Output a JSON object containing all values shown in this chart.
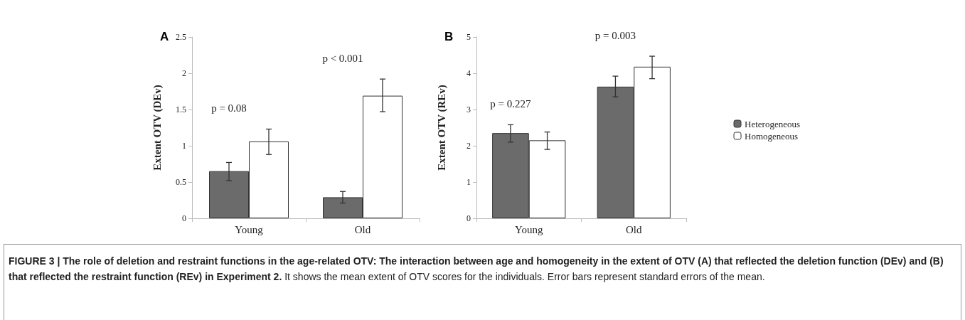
{
  "chart_data": [
    {
      "type": "bar",
      "title": "A",
      "categories": [
        "Young",
        "Old"
      ],
      "ylabel": "Extent OTV (DEv)",
      "ylim": [
        0,
        2.5
      ],
      "yticks": [
        0,
        0.5,
        1,
        1.5,
        2,
        2.5
      ],
      "grid": false,
      "legend": false,
      "series": [
        {
          "color": "#6b6b6b",
          "values": [
            0.65,
            0.29
          ],
          "errors": [
            [
              0.52,
              0.77
            ],
            [
              0.21,
              0.37
            ]
          ]
        },
        {
          "color": "#ffffff",
          "values": [
            1.06,
            1.69
          ],
          "errors": [
            [
              0.88,
              1.23
            ],
            [
              1.47,
              1.92
            ]
          ]
        }
      ],
      "annotations": [
        "p = 0.08",
        "p < 0.001"
      ]
    },
    {
      "type": "bar",
      "title": "B",
      "categories": [
        "Young",
        "Old"
      ],
      "ylabel": "Extent OTV (REv)",
      "ylim": [
        0,
        5
      ],
      "yticks": [
        0,
        1,
        2,
        3,
        4,
        5
      ],
      "grid": false,
      "legend": "right",
      "series": [
        {
          "name": "Heterogeneous",
          "color": "#6b6b6b",
          "values": [
            2.35,
            3.63
          ],
          "errors": [
            [
              2.1,
              2.58
            ],
            [
              3.35,
              3.92
            ]
          ]
        },
        {
          "name": "Homogeneous",
          "color": "#ffffff",
          "values": [
            2.15,
            4.18
          ],
          "errors": [
            [
              1.9,
              2.38
            ],
            [
              3.85,
              4.47
            ]
          ]
        }
      ],
      "annotations": [
        "FIGURE 3 | The role of deletion and restraint functions in the age-related OTV: The interaction between age and homogeneity in the extent of OTV (A) that reflected the deletion function (DEv) and (B) that reflected the restraint function (REv) in Experiment 2.",
        "It shows the mean extent of OTV scores for the individuals. Error bars represent standard errors of the mean.",
        "p = 0.227",
        "p = 0.003"
      ]
    }
  ]
}
